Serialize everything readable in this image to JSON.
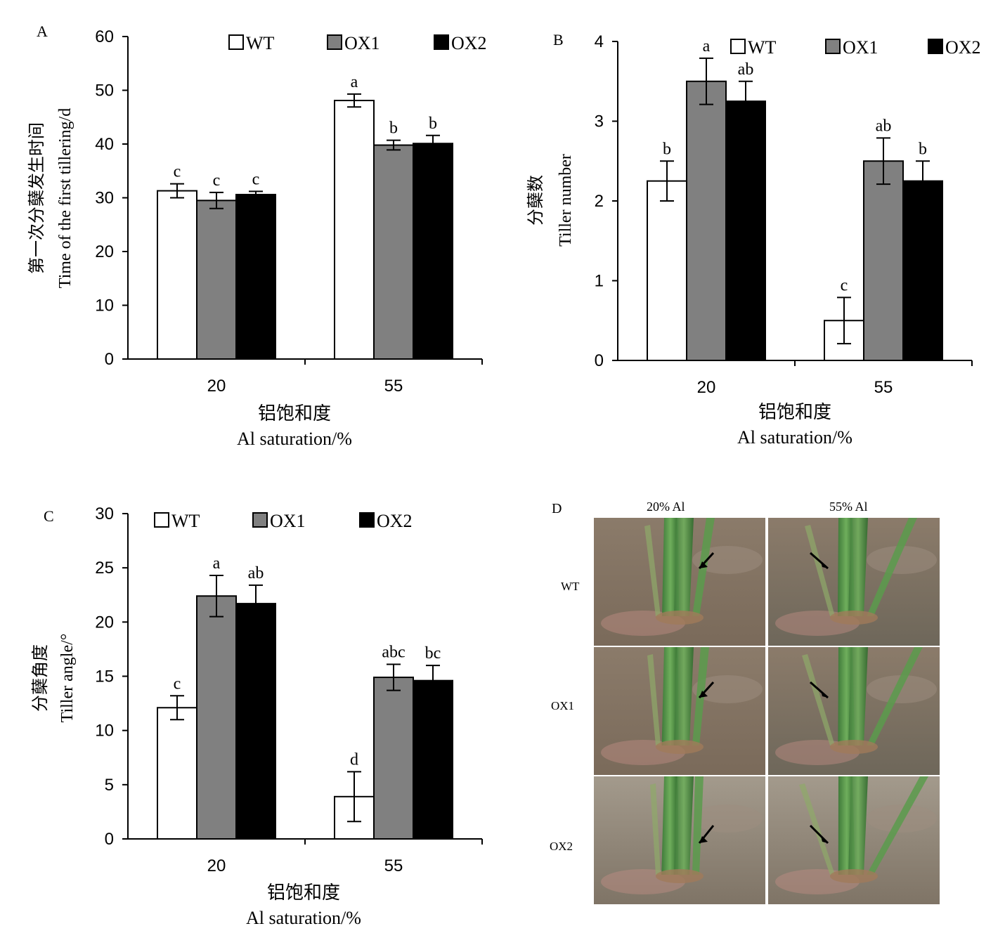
{
  "legend": [
    "WT",
    "OX1",
    "OX2"
  ],
  "colors": {
    "WT": "#ffffff",
    "OX1": "#808080",
    "OX2": "#000000"
  },
  "chart_data": [
    {
      "panel": "A",
      "type": "bar",
      "categories": [
        "20",
        "55"
      ],
      "series": [
        {
          "name": "WT",
          "values": [
            31.3,
            48.1
          ],
          "errors": [
            1.3,
            1.2
          ],
          "letters": [
            "c",
            "a"
          ]
        },
        {
          "name": "OX1",
          "values": [
            29.5,
            39.8
          ],
          "errors": [
            1.5,
            0.9
          ],
          "letters": [
            "c",
            "b"
          ]
        },
        {
          "name": "OX2",
          "values": [
            30.6,
            40.1
          ],
          "errors": [
            0.6,
            1.5
          ],
          "letters": [
            "c",
            "b"
          ]
        }
      ],
      "ylim": [
        0,
        60
      ],
      "yticks": [
        0,
        10,
        20,
        30,
        40,
        50,
        60
      ],
      "ylabel_cn": "第一次分蘖发生时间",
      "ylabel_en": "Time of the first tillering/d",
      "xlabel_cn": "铝饱和度",
      "xlabel_en": "Al saturation/%",
      "legend_position": "top"
    },
    {
      "panel": "B",
      "type": "bar",
      "categories": [
        "20",
        "55"
      ],
      "series": [
        {
          "name": "WT",
          "values": [
            2.25,
            0.5
          ],
          "errors": [
            0.25,
            0.29
          ],
          "letters": [
            "b",
            "c"
          ]
        },
        {
          "name": "OX1",
          "values": [
            3.5,
            2.5
          ],
          "errors": [
            0.29,
            0.29
          ],
          "letters": [
            "a",
            "ab"
          ]
        },
        {
          "name": "OX2",
          "values": [
            3.25,
            2.25
          ],
          "errors": [
            0.25,
            0.25
          ],
          "letters": [
            "ab",
            "b"
          ]
        }
      ],
      "ylim": [
        0,
        4
      ],
      "yticks": [
        0,
        1,
        2,
        3,
        4
      ],
      "ylabel_cn": "分蘖数",
      "ylabel_en": "Tiller  number",
      "xlabel_cn": "铝饱和度",
      "xlabel_en": "Al saturation/%",
      "legend_position": "top"
    },
    {
      "panel": "C",
      "type": "bar",
      "categories": [
        "20",
        "55"
      ],
      "series": [
        {
          "name": "WT",
          "values": [
            12.1,
            3.9
          ],
          "errors": [
            1.1,
            2.3
          ],
          "letters": [
            "c",
            "d"
          ]
        },
        {
          "name": "OX1",
          "values": [
            22.4,
            14.9
          ],
          "errors": [
            1.9,
            1.2
          ],
          "letters": [
            "a",
            "abc"
          ]
        },
        {
          "name": "OX2",
          "values": [
            21.7,
            14.6
          ],
          "errors": [
            1.7,
            1.4
          ],
          "letters": [
            "ab",
            "bc"
          ]
        }
      ],
      "ylim": [
        0,
        30
      ],
      "yticks": [
        0,
        5,
        10,
        15,
        20,
        25,
        30
      ],
      "ylabel_cn": "分蘖角度",
      "ylabel_en": "Tiller  angle/°",
      "xlabel_cn": "铝饱和度",
      "xlabel_en": "Al saturation/%",
      "legend_position": "top"
    }
  ],
  "photos": {
    "panel": "D",
    "columns": [
      "20% Al",
      "55% Al"
    ],
    "rows": [
      "WT",
      "OX1",
      "OX2"
    ]
  }
}
